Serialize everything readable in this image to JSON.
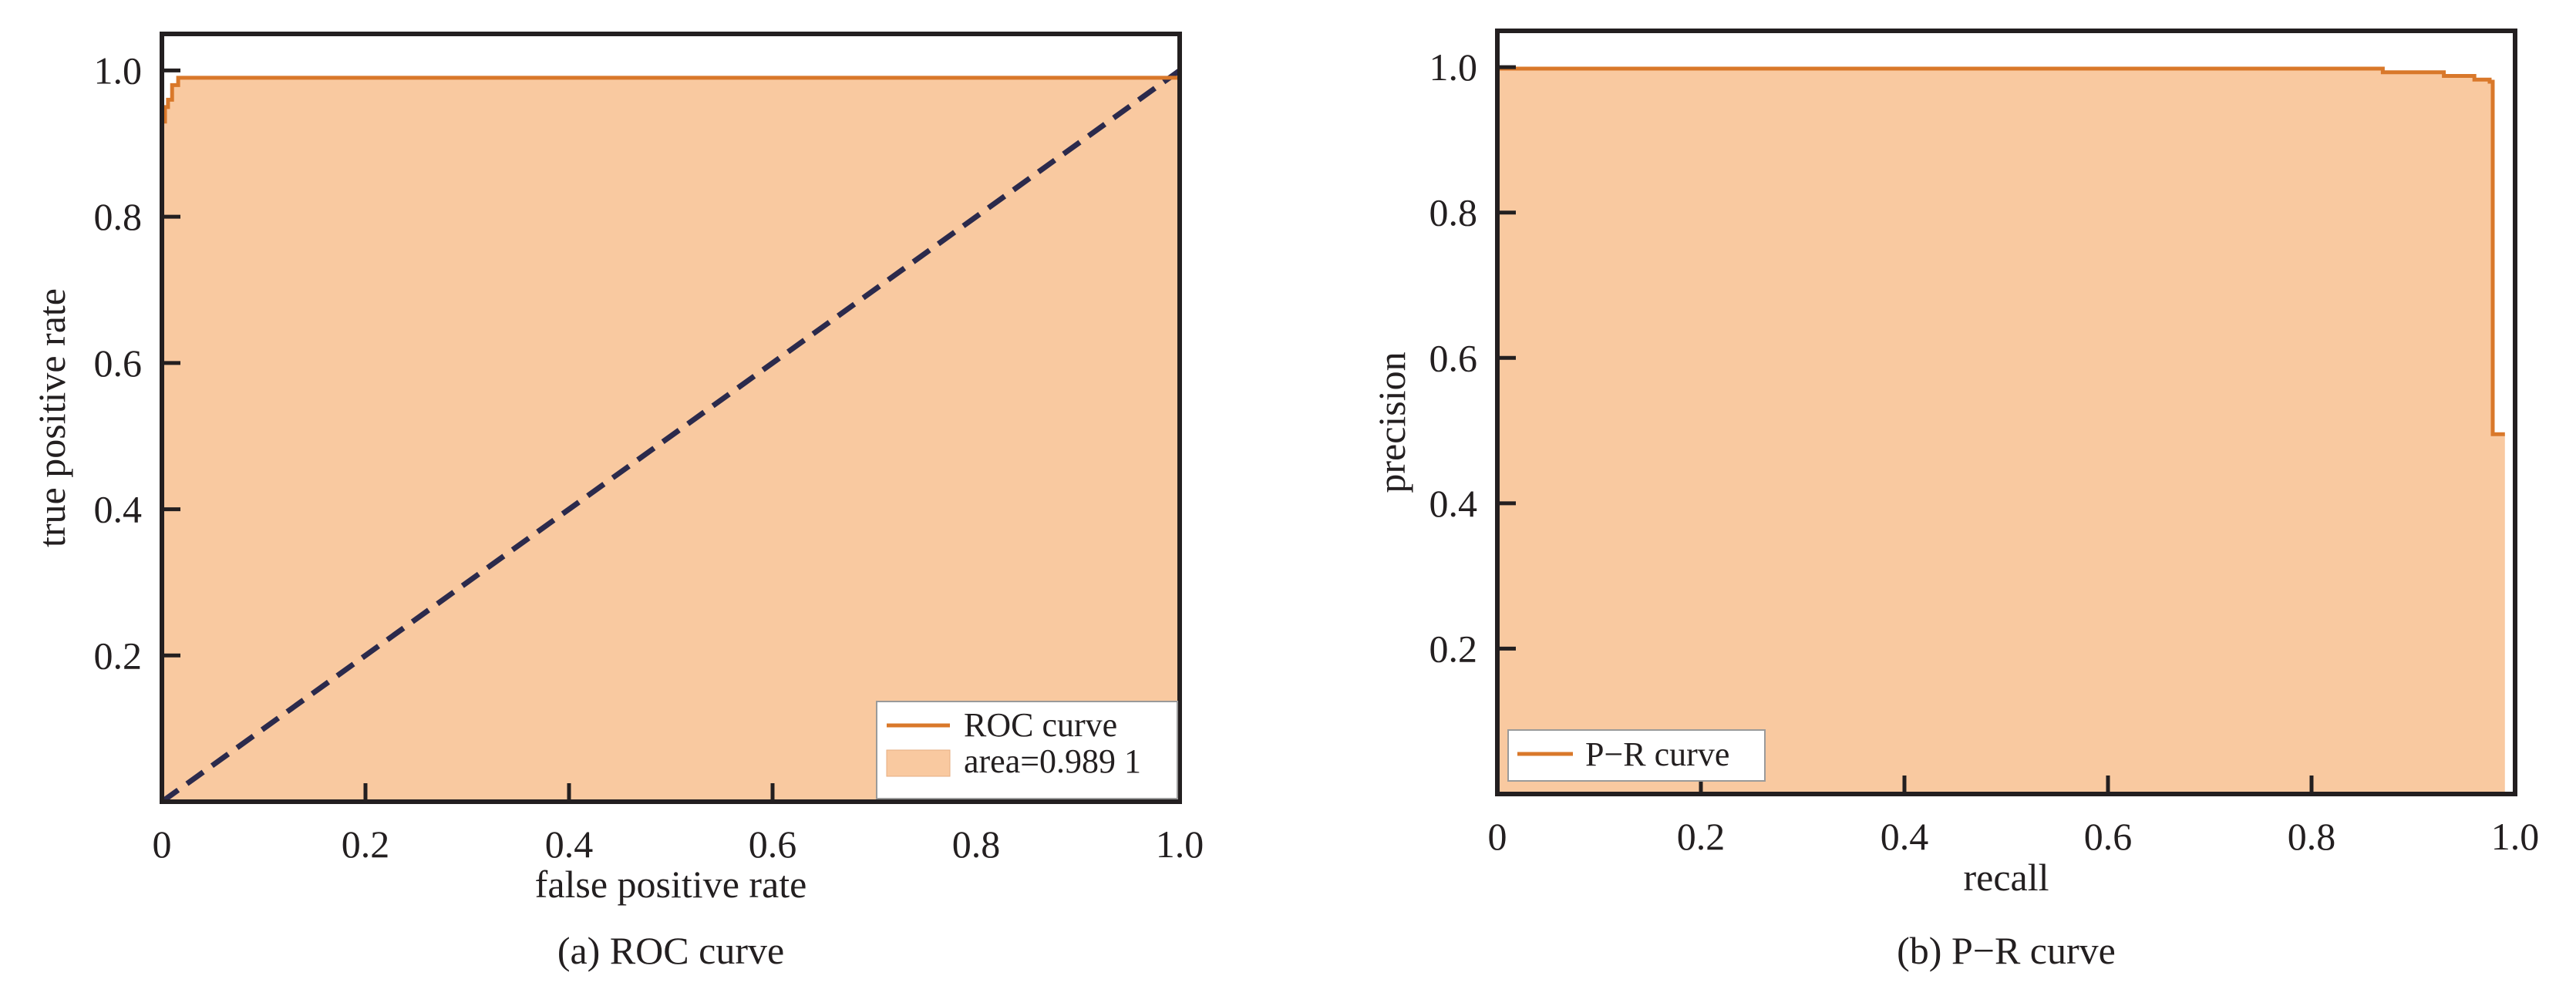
{
  "chart_data": [
    {
      "type": "area",
      "caption": "(a) ROC curve",
      "xlabel": "false positive rate",
      "ylabel": "true positive rate",
      "xlim": [
        0,
        1.0
      ],
      "ylim": [
        0,
        1.05
      ],
      "xticks": [
        0,
        0.2,
        0.4,
        0.6,
        0.8,
        1.0
      ],
      "xtick_labels": [
        "0",
        "0.2",
        "0.4",
        "0.6",
        "0.8",
        "1.0"
      ],
      "yticks": [
        0.2,
        0.4,
        0.6,
        0.8,
        1.0
      ],
      "ytick_labels": [
        "0.2",
        "0.4",
        "0.6",
        "0.8",
        "1.0"
      ],
      "grid": false,
      "legend_position": "bottom-right",
      "series": [
        {
          "name": "ROC curve",
          "kind": "line",
          "color": "#d9782a",
          "x": [
            0.0,
            0.0,
            0.003,
            0.003,
            0.006,
            0.006,
            0.01,
            0.01,
            0.016,
            0.016,
            1.0
          ],
          "y": [
            0.87,
            0.93,
            0.93,
            0.95,
            0.95,
            0.96,
            0.96,
            0.98,
            0.98,
            0.99,
            0.99
          ]
        },
        {
          "name": "area=0.989 1",
          "kind": "fill",
          "color": "#f9c9a0"
        },
        {
          "kind": "dashed-line",
          "color": "#2b2a4c",
          "x": [
            0,
            1
          ],
          "y": [
            0,
            1
          ]
        }
      ]
    },
    {
      "type": "area",
      "caption": "(b) P−R curve",
      "xlabel": "recall",
      "ylabel": "precision",
      "xlim": [
        0,
        1.0
      ],
      "ylim": [
        0,
        1.05
      ],
      "xticks": [
        0,
        0.2,
        0.4,
        0.6,
        0.8,
        1.0
      ],
      "xtick_labels": [
        "0",
        "0.2",
        "0.4",
        "0.6",
        "0.8",
        "1.0"
      ],
      "yticks": [
        0.2,
        0.4,
        0.6,
        0.8,
        1.0
      ],
      "ytick_labels": [
        "0.2",
        "0.4",
        "0.6",
        "0.8",
        "1.0"
      ],
      "grid": false,
      "legend_position": "bottom-left",
      "series": [
        {
          "name": "P−R curve",
          "kind": "line",
          "color": "#d9782a",
          "x": [
            0.0,
            0.6,
            0.87,
            0.87,
            0.93,
            0.93,
            0.96,
            0.96,
            0.975,
            0.975,
            0.978,
            0.978,
            0.99
          ],
          "y": [
            0.998,
            0.998,
            0.998,
            0.993,
            0.993,
            0.988,
            0.988,
            0.983,
            0.983,
            0.98,
            0.98,
            0.495,
            0.495
          ]
        }
      ]
    }
  ]
}
